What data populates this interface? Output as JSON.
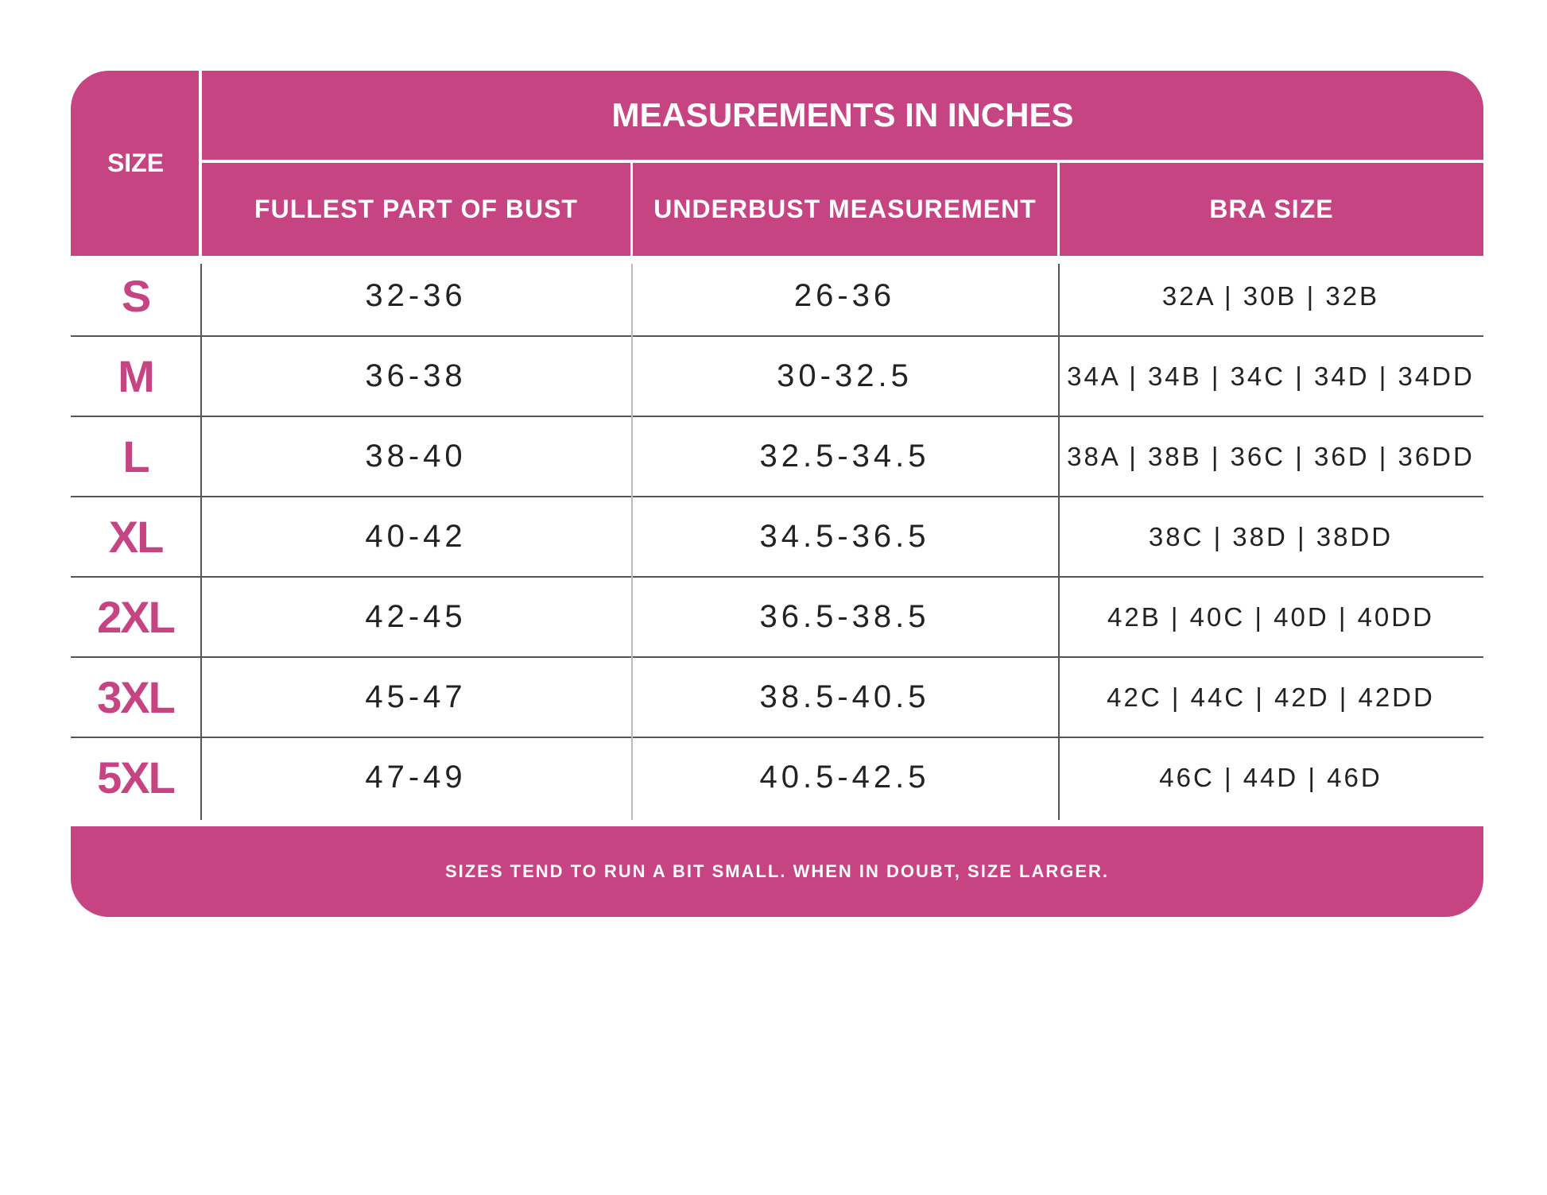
{
  "colors": {
    "accent": "#c64482",
    "text": "#222222"
  },
  "header": {
    "size_label": "SIZE",
    "group_label": "MEASUREMENTS IN INCHES",
    "columns": [
      "FULLEST PART OF BUST",
      "UNDERBUST MEASUREMENT",
      "BRA SIZE"
    ]
  },
  "rows": [
    {
      "size": "S",
      "bust": "32-36",
      "underbust": "26-36",
      "bra": "32A | 30B | 32B"
    },
    {
      "size": "M",
      "bust": "36-38",
      "underbust": "30-32.5",
      "bra": "34A | 34B | 34C | 34D | 34DD"
    },
    {
      "size": "L",
      "bust": "38-40",
      "underbust": "32.5-34.5",
      "bra": "38A | 38B | 36C | 36D | 36DD"
    },
    {
      "size": "XL",
      "bust": "40-42",
      "underbust": "34.5-36.5",
      "bra": "38C | 38D | 38DD"
    },
    {
      "size": "2XL",
      "bust": "42-45",
      "underbust": "36.5-38.5",
      "bra": "42B | 40C | 40D | 40DD"
    },
    {
      "size": "3XL",
      "bust": "45-47",
      "underbust": "38.5-40.5",
      "bra": "42C | 44C | 42D | 42DD"
    },
    {
      "size": "5XL",
      "bust": "47-49",
      "underbust": "40.5-42.5",
      "bra": "46C | 44D | 46D"
    }
  ],
  "footer": {
    "note": "SIZES TEND TO RUN A BIT SMALL. WHEN IN DOUBT, SIZE LARGER."
  }
}
